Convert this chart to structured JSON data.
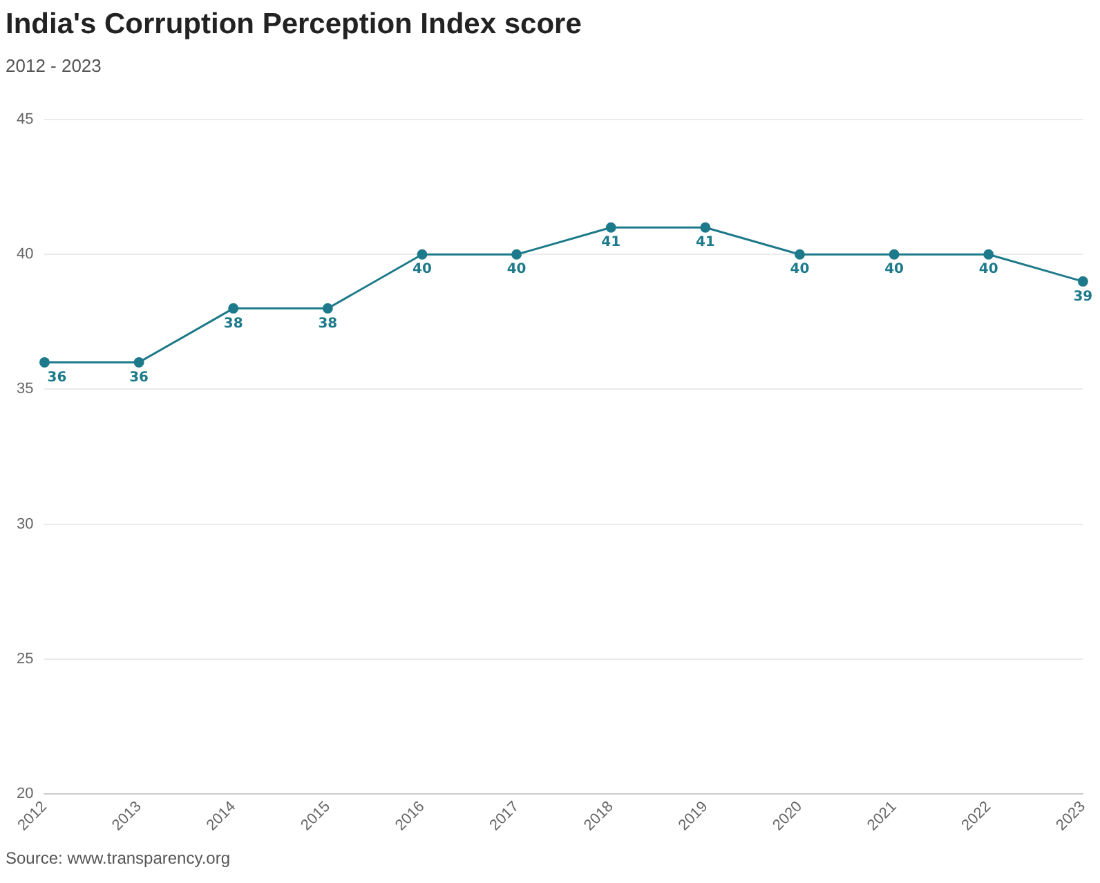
{
  "chart_data": {
    "type": "line",
    "title": "India's Corruption Perception Index score",
    "subtitle": "2012 - 2023",
    "categories": [
      "2012",
      "2013",
      "2014",
      "2015",
      "2016",
      "2017",
      "2018",
      "2019",
      "2020",
      "2021",
      "2022",
      "2023"
    ],
    "series": [
      {
        "color": "#1d7a8a",
        "values": [
          36,
          36,
          38,
          38,
          40,
          40,
          41,
          41,
          40,
          40,
          40,
          39
        ]
      }
    ],
    "ylim": [
      20,
      45
    ],
    "yticks": [
      20,
      25,
      30,
      35,
      40,
      45
    ],
    "grid": "y",
    "legend": false,
    "marker": "circle",
    "line_style": "solid",
    "data_labels": true,
    "annotations": [
      "Source: www.transparency.org"
    ]
  }
}
